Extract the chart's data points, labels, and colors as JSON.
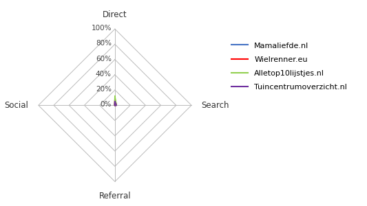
{
  "categories": [
    "Direct",
    "Search",
    "Referral",
    "Social"
  ],
  "series": [
    {
      "name": "Mamaliefde.nl",
      "color": "#4472C4",
      "values": [
        0.07,
        0.02,
        0.005,
        0.005
      ]
    },
    {
      "name": "Wielrenner.eu",
      "color": "#FF0000",
      "values": [
        0.09,
        0.02,
        0.005,
        0.005
      ]
    },
    {
      "name": "Alletop10lijstjes.nl",
      "color": "#92D050",
      "values": [
        0.12,
        0.02,
        0.005,
        0.005
      ]
    },
    {
      "name": "Tuincentrumoverzicht.nl",
      "color": "#7030A0",
      "values": [
        0.05,
        0.02,
        0.005,
        0.005
      ]
    }
  ],
  "grid_values": [
    0.0,
    0.2,
    0.4,
    0.6,
    0.8,
    1.0
  ],
  "grid_labels": [
    "0%",
    "20%",
    "40%",
    "60%",
    "80%",
    "100%"
  ],
  "max_val": 1.0,
  "background_color": "#FFFFFF",
  "grid_color": "#BBBBBB",
  "label_fontsize": 8.5,
  "legend_fontsize": 8,
  "tick_label_fontsize": 7.5
}
